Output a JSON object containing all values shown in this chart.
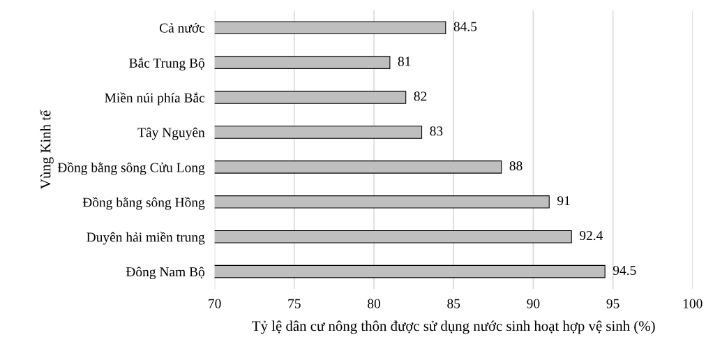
{
  "chart_data": {
    "type": "bar",
    "orientation": "horizontal",
    "categories": [
      "Cả nước",
      "Bắc Trung Bộ",
      "Miền núi phía Bắc",
      "Tây Nguyên",
      "Đồng bằng sông Cửu Long",
      "Đồng bằng sông Hồng",
      "Duyên hải miền trung",
      "Đông Nam Bộ"
    ],
    "values": [
      84.5,
      81,
      82,
      83,
      88,
      91,
      92.4,
      94.5
    ],
    "color": "#bfbfbf",
    "xlim": [
      70,
      100
    ],
    "xticks": [
      70,
      75,
      80,
      85,
      90,
      95,
      100
    ],
    "grid": "x",
    "data_labels": true,
    "xlabel": "Tỷ lệ dân cư nông thôn được sử dụng nước sinh hoạt hợp vệ sinh (%)",
    "ylabel": "Vùng Kinh tế"
  }
}
